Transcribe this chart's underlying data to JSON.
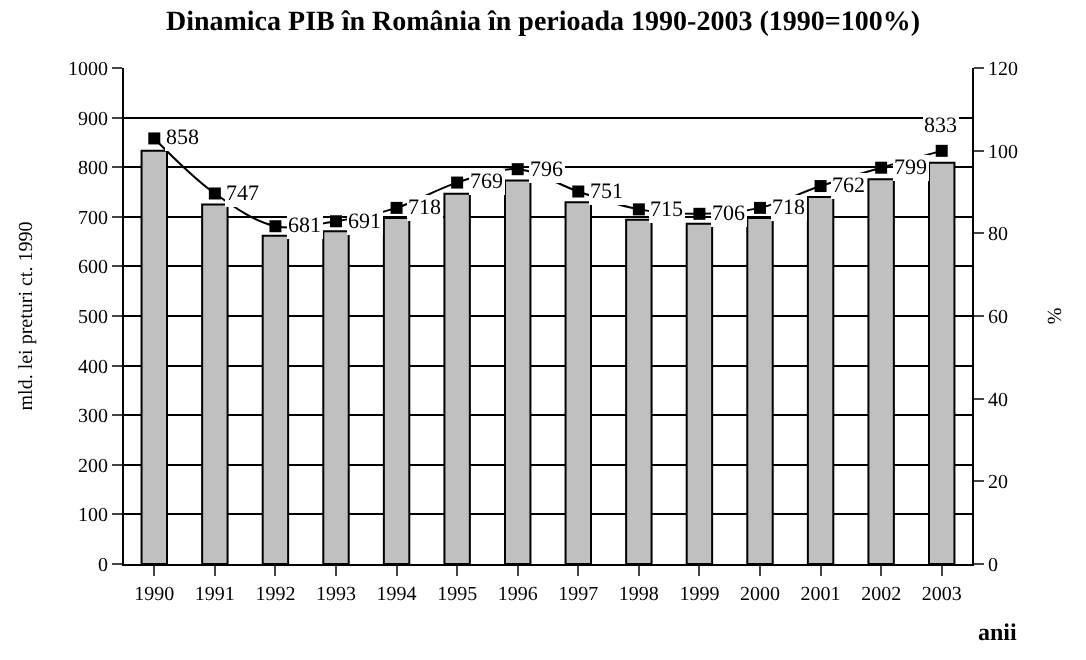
{
  "chart_data": {
    "type": "bar",
    "title": "Dinamica PIB în România în perioada 1990-2003 (1990=100%)",
    "xlabel": "anii",
    "ylabel": "mld. lei preturi ct. 1990",
    "y2label": "%",
    "categories": [
      "1990",
      "1991",
      "1992",
      "1993",
      "1994",
      "1995",
      "1996",
      "1997",
      "1998",
      "1999",
      "2000",
      "2001",
      "2002",
      "2003"
    ],
    "series": [
      {
        "axis": "y2",
        "color": "#c0c0c0",
        "values": [
          100,
          87,
          79.4,
          80.5,
          83.7,
          89.6,
          92.8,
          87.5,
          83.3,
          82.3,
          83.7,
          88.8,
          93.1,
          97.1
        ]
      },
      {
        "type": "line",
        "axis": "y",
        "color": "#000000",
        "marker": "square",
        "values": [
          858,
          747,
          681,
          691,
          718,
          769,
          796,
          751,
          715,
          706,
          718,
          762,
          799,
          833
        ],
        "value_labels": [
          "858",
          "747",
          "681",
          "691",
          "718",
          "769",
          "796",
          "751",
          "715",
          "706",
          "718",
          "762",
          "799",
          "833"
        ]
      }
    ],
    "ylim": [
      0,
      1000
    ],
    "yticks": [
      0,
      100,
      200,
      300,
      400,
      500,
      600,
      700,
      800,
      900,
      1000
    ],
    "y2lim": [
      0,
      120
    ],
    "y2ticks": [
      0,
      20,
      40,
      60,
      80,
      100,
      120
    ],
    "grid": "y"
  }
}
